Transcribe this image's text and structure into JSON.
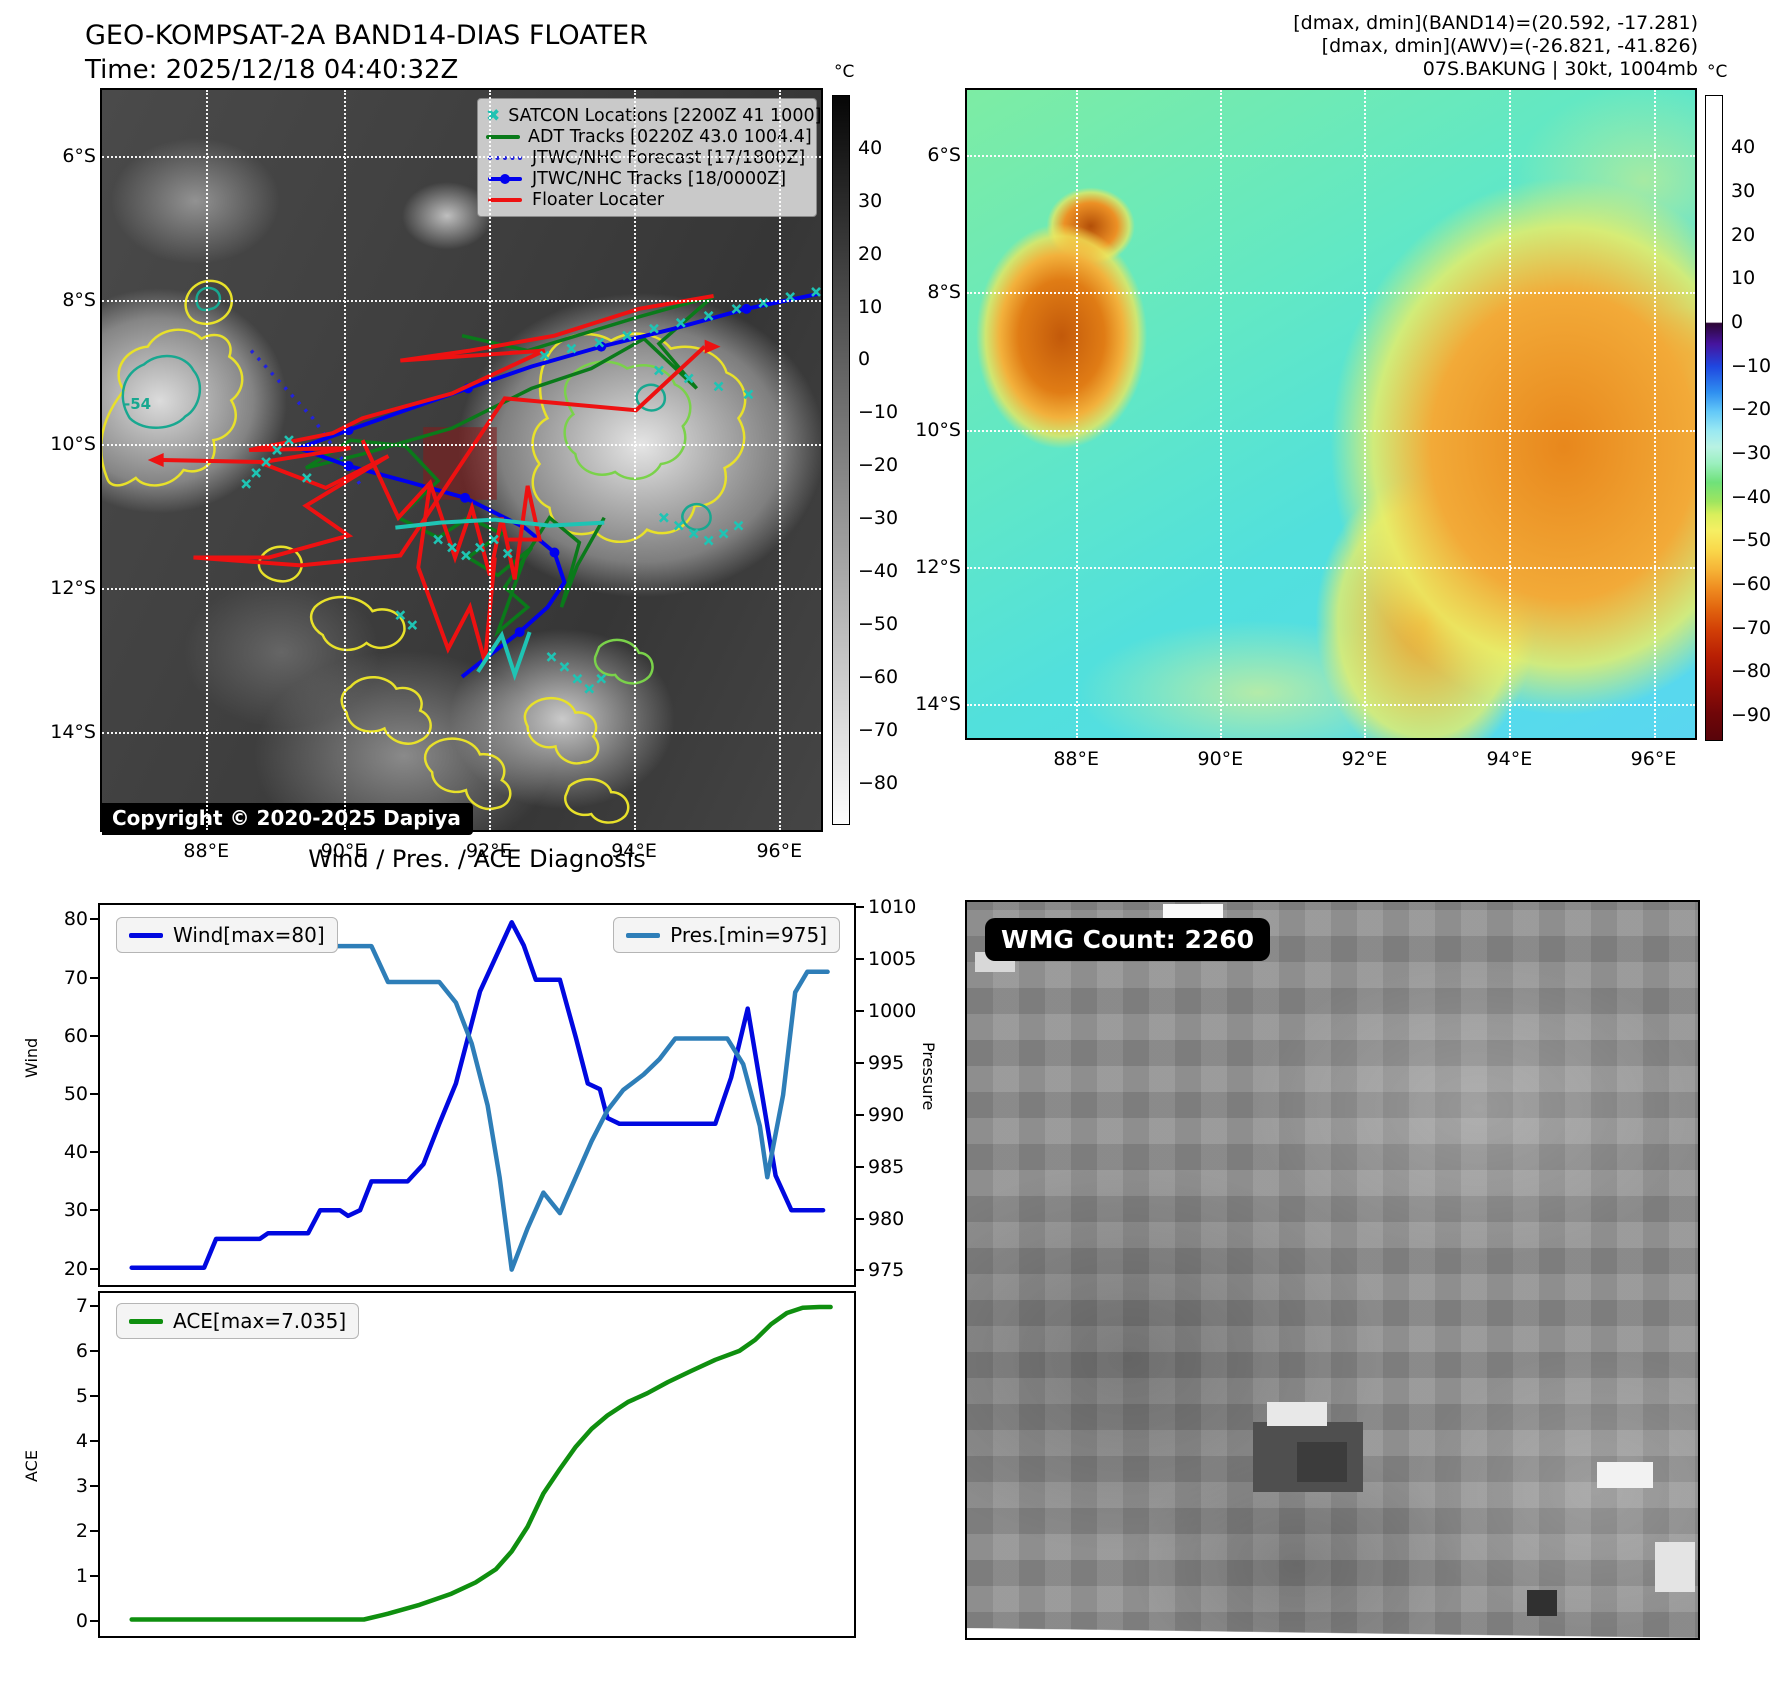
{
  "panel_band14": {
    "title_line1": "GEO-KOMPSAT-2A BAND14-DIAS FLOATER",
    "title_line2": "Time: 2025/12/18 04:40:32Z",
    "copyright": "Copyright © 2020-2025 Dapiya",
    "contour_label": "-54",
    "legend": [
      {
        "label": "SATCON Locations [2200Z 41 1000]",
        "marker": "x",
        "color": "#20c2b2"
      },
      {
        "label": "ADT Tracks [0220Z 43.0 1004.4]",
        "marker": "line",
        "color": "#0a7a1a"
      },
      {
        "label": "JTWC/NHC Forecast [17/1800Z]",
        "marker": "dotted",
        "color": "#2222dd"
      },
      {
        "label": "JTWC/NHC Tracks [18/0000Z]",
        "marker": "linedot",
        "color": "#0000ee"
      },
      {
        "label": "Floater Locater",
        "marker": "line",
        "color": "#ee1111"
      }
    ],
    "lon_ticks": [
      "88°E",
      "90°E",
      "92°E",
      "94°E",
      "96°E"
    ],
    "lat_ticks": [
      "6°S",
      "8°S",
      "10°S",
      "12°S",
      "14°S"
    ],
    "colorbar": {
      "unit": "°C",
      "vtop": 50,
      "vbottom": -88,
      "ticks": [
        40,
        30,
        20,
        10,
        0,
        -10,
        -20,
        -30,
        -40,
        -50,
        -60,
        -70,
        -80
      ]
    }
  },
  "panel_awv": {
    "header_line1": "[dmax, dmin](BAND14)=(20.592, -17.281)",
    "header_line2": "[dmax, dmin](AWV)=(-26.821, -41.826)",
    "header_line3": "07S.BAKUNG | 30kt, 1004mb",
    "lon_ticks": [
      "88°E",
      "90°E",
      "92°E",
      "94°E",
      "96°E"
    ],
    "lat_ticks": [
      "6°S",
      "8°S",
      "10°S",
      "12°S",
      "14°S"
    ],
    "colorbar": {
      "unit": "°C",
      "vtop": 52,
      "vbottom": -96,
      "ticks": [
        40,
        30,
        20,
        10,
        0,
        -10,
        -20,
        -30,
        -40,
        -50,
        -60,
        -70,
        -80,
        -90
      ]
    }
  },
  "panel_wmg": {
    "label": "WMG Count: 2260"
  },
  "chart_data": {
    "type": "line",
    "title": "Wind / Pres. / ACE Diagnosis",
    "x_range": [
      0,
      100
    ],
    "top": {
      "left_axis": {
        "label": "Wind",
        "range": [
          17,
          83
        ],
        "ticks": [
          20,
          30,
          40,
          50,
          60,
          70,
          80
        ]
      },
      "right_axis": {
        "label": "Pressure",
        "range": [
          973.5,
          1010.5
        ],
        "ticks": [
          975,
          980,
          985,
          990,
          995,
          1000,
          1005,
          1010
        ]
      },
      "series": [
        {
          "name": "Wind[max=80]",
          "color": "#0008e0",
          "axis": "left",
          "points": [
            [
              4.2,
              20
            ],
            [
              13.8,
              20
            ],
            [
              15.4,
              25
            ],
            [
              21.2,
              25
            ],
            [
              22.3,
              26
            ],
            [
              27.6,
              26
            ],
            [
              29.2,
              30
            ],
            [
              31.8,
              30
            ],
            [
              32.9,
              29
            ],
            [
              34.5,
              30
            ],
            [
              36,
              35
            ],
            [
              40.8,
              35
            ],
            [
              42.9,
              38
            ],
            [
              45,
              45
            ],
            [
              47.2,
              52
            ],
            [
              48.8,
              60
            ],
            [
              50.4,
              68
            ],
            [
              52.5,
              74
            ],
            [
              54.6,
              80
            ],
            [
              56.2,
              76
            ],
            [
              57.8,
              70
            ],
            [
              61,
              70
            ],
            [
              63.1,
              60
            ],
            [
              64.7,
              52
            ],
            [
              66.3,
              51
            ],
            [
              67.3,
              46
            ],
            [
              68.9,
              45
            ],
            [
              81.6,
              45
            ],
            [
              83.7,
              53
            ],
            [
              85.9,
              65
            ],
            [
              89.6,
              36
            ],
            [
              91.7,
              30
            ],
            [
              95.9,
              30
            ]
          ]
        },
        {
          "name": "Pres.[min=975]",
          "color": "#2e7eb8",
          "axis": "right",
          "points": [
            [
              4.2,
              1008
            ],
            [
              14.8,
              1008
            ],
            [
              17,
              1007
            ],
            [
              23.3,
              1007
            ],
            [
              24.9,
              1007.5
            ],
            [
              26.5,
              1007.5
            ],
            [
              28.1,
              1006.5
            ],
            [
              36,
              1006.5
            ],
            [
              38.2,
              1003
            ],
            [
              45,
              1003
            ],
            [
              47.2,
              1001
            ],
            [
              49.3,
              997
            ],
            [
              51.4,
              991
            ],
            [
              53,
              984
            ],
            [
              54.6,
              975
            ],
            [
              56.7,
              979
            ],
            [
              58.8,
              982.5
            ],
            [
              61,
              980.5
            ],
            [
              63.1,
              984
            ],
            [
              65.2,
              987.5
            ],
            [
              67.3,
              990.5
            ],
            [
              69.4,
              992.5
            ],
            [
              72.1,
              994
            ],
            [
              74.2,
              995.5
            ],
            [
              76.3,
              997.5
            ],
            [
              83.2,
              997.5
            ],
            [
              85.3,
              995
            ],
            [
              87.5,
              989
            ],
            [
              88.5,
              984
            ],
            [
              90.6,
              992
            ],
            [
              92.2,
              1002
            ],
            [
              93.8,
              1004
            ],
            [
              96.5,
              1004
            ]
          ]
        }
      ]
    },
    "bottom": {
      "left_axis": {
        "label": "ACE",
        "range": [
          -0.35,
          7.35
        ],
        "ticks": [
          0,
          1,
          2,
          3,
          4,
          5,
          6,
          7
        ]
      },
      "series": [
        {
          "name": "ACE[max=7.035]",
          "color": "#0f8f0f",
          "axis": "left",
          "points": [
            [
              4.2,
              0.02
            ],
            [
              35,
              0.02
            ],
            [
              38.2,
              0.15
            ],
            [
              42.4,
              0.35
            ],
            [
              46.6,
              0.6
            ],
            [
              49.8,
              0.85
            ],
            [
              52.5,
              1.15
            ],
            [
              54.6,
              1.55
            ],
            [
              56.7,
              2.1
            ],
            [
              58.8,
              2.85
            ],
            [
              61,
              3.4
            ],
            [
              63.1,
              3.9
            ],
            [
              65.2,
              4.3
            ],
            [
              67.3,
              4.6
            ],
            [
              70,
              4.9
            ],
            [
              72.6,
              5.1
            ],
            [
              75.3,
              5.35
            ],
            [
              78.4,
              5.6
            ],
            [
              81.6,
              5.85
            ],
            [
              84.8,
              6.05
            ],
            [
              86.9,
              6.3
            ],
            [
              89,
              6.65
            ],
            [
              91.1,
              6.9
            ],
            [
              93.2,
              7.02
            ],
            [
              95.4,
              7.035
            ],
            [
              96.9,
              7.035
            ]
          ]
        }
      ]
    }
  }
}
